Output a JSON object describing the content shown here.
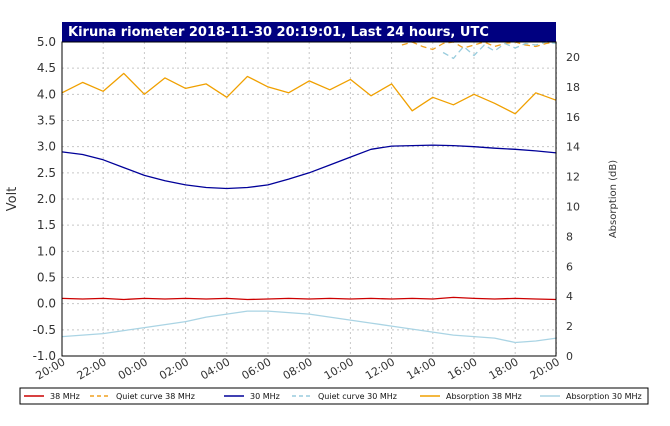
{
  "chart_data": {
    "type": "line",
    "title": "Kiruna riometer 2018-11-30 20:19:01, Last 24 hours, UTC",
    "ylabel": "Volt",
    "y2label": "Absorption (dB)",
    "ylim": [
      -1.0,
      5.0
    ],
    "y2lim": [
      0,
      21
    ],
    "y_ticks": [
      "5.0",
      "4.5",
      "4.0",
      "3.5",
      "3.0",
      "2.5",
      "2.0",
      "1.5",
      "1.0",
      "0.5",
      "0.0",
      "-0.5",
      "-1.0"
    ],
    "y2_ticks": [
      "20",
      "18",
      "16",
      "14",
      "12",
      "10",
      "8",
      "6",
      "4",
      "2",
      "0"
    ],
    "x_ticks": [
      "20:00",
      "22:00",
      "00:00",
      "02:00",
      "04:00",
      "06:00",
      "08:00",
      "10:00",
      "12:00",
      "14:00",
      "16:00",
      "18:00",
      "20:00"
    ],
    "x_hours_since_start": [
      0,
      1,
      2,
      3,
      4,
      5,
      6,
      7,
      8,
      9,
      10,
      11,
      12,
      13,
      14,
      15,
      16,
      17,
      18,
      19,
      20,
      21,
      22,
      23,
      24
    ],
    "grid": true,
    "legend_position": "bottom",
    "series": [
      {
        "name": "38 MHz",
        "axis": "left",
        "style": "solid",
        "color": "#cc0000",
        "values": [
          0.1,
          0.09,
          0.1,
          0.08,
          0.1,
          0.09,
          0.1,
          0.09,
          0.1,
          0.08,
          0.09,
          0.1,
          0.09,
          0.1,
          0.09,
          0.1,
          0.09,
          0.1,
          0.09,
          0.12,
          0.1,
          0.09,
          0.1,
          0.09,
          0.08
        ]
      },
      {
        "name": "Quiet curve 38 MHz",
        "axis": "right",
        "style": "dashed",
        "color": "#f0a020",
        "x": [
          16.5,
          17.0,
          17.5,
          18.0,
          18.5,
          19.0,
          19.5,
          20.0,
          20.5,
          21.0,
          21.5,
          22.0,
          22.5,
          23.0,
          23.5,
          24.0
        ],
        "values": [
          20.8,
          21.0,
          20.7,
          20.5,
          20.9,
          21.0,
          20.6,
          20.8,
          21.0,
          20.7,
          20.9,
          21.0,
          20.8,
          20.7,
          20.9,
          21.0
        ]
      },
      {
        "name": "30 MHz",
        "axis": "left",
        "style": "solid",
        "color": "#000099",
        "values": [
          2.9,
          2.85,
          2.75,
          2.6,
          2.45,
          2.35,
          2.27,
          2.22,
          2.2,
          2.22,
          2.27,
          2.38,
          2.5,
          2.65,
          2.8,
          2.95,
          3.01,
          3.02,
          3.03,
          3.02,
          3.0,
          2.97,
          2.95,
          2.92,
          2.88
        ]
      },
      {
        "name": "Quiet curve 30 MHz",
        "axis": "right",
        "style": "dashed",
        "color": "#99ccdd",
        "x": [
          18.5,
          19.0,
          19.5,
          20.0,
          20.5,
          21.0,
          21.5,
          22.0,
          22.5,
          23.0,
          23.5,
          24.0
        ],
        "values": [
          20.3,
          19.9,
          20.7,
          20.1,
          20.8,
          20.4,
          20.9,
          20.6,
          20.9,
          20.8,
          21.0,
          20.9
        ]
      },
      {
        "name": "Absorption 38 MHz",
        "axis": "right",
        "style": "solid",
        "color": "#f0a000",
        "values": [
          17.6,
          18.3,
          17.7,
          18.9,
          17.5,
          18.6,
          17.9,
          18.2,
          17.3,
          18.7,
          18.0,
          17.6,
          18.4,
          17.8,
          18.5,
          17.4,
          18.2,
          16.4,
          17.3,
          16.8,
          17.5,
          16.9,
          16.2,
          17.6,
          17.1
        ]
      },
      {
        "name": "Absorption 30 MHz",
        "axis": "right",
        "style": "solid",
        "color": "#aad4e4",
        "values": [
          1.3,
          1.4,
          1.5,
          1.7,
          1.9,
          2.1,
          2.3,
          2.6,
          2.8,
          3.0,
          3.0,
          2.9,
          2.8,
          2.6,
          2.4,
          2.2,
          2.0,
          1.8,
          1.6,
          1.4,
          1.3,
          1.2,
          0.9,
          1.0,
          1.2
        ]
      }
    ]
  }
}
